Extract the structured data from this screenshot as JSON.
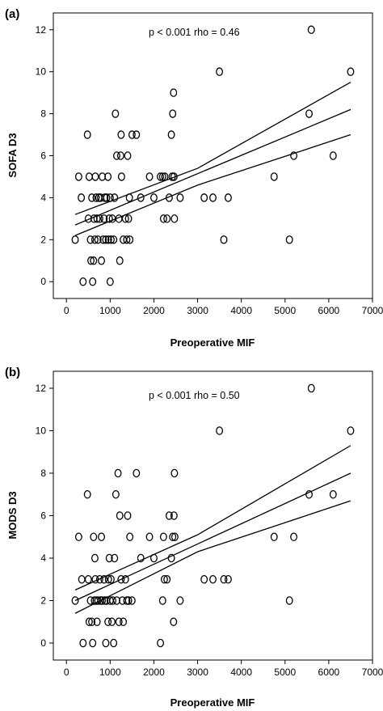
{
  "chart_data": [
    {
      "type": "scatter",
      "panel_label": "(a)",
      "annotation": "p < 0.001  rho = 0.46",
      "xlabel": "Preoperative MIF",
      "ylabel": "SOFA D3",
      "xlim": [
        -300,
        7000
      ],
      "ylim": [
        -0.8,
        12.8
      ],
      "xticks": [
        "0",
        "1000",
        "2000",
        "3000",
        "4000",
        "5000",
        "6000",
        "7000"
      ],
      "yticks": [
        "0",
        "2",
        "4",
        "6",
        "8",
        "10",
        "12"
      ],
      "grid": false,
      "points": [
        [
          200,
          2
        ],
        [
          280,
          5
        ],
        [
          340,
          4
        ],
        [
          380,
          0
        ],
        [
          480,
          7
        ],
        [
          500,
          3
        ],
        [
          520,
          5
        ],
        [
          550,
          2
        ],
        [
          560,
          1
        ],
        [
          580,
          4
        ],
        [
          600,
          0
        ],
        [
          620,
          1
        ],
        [
          630,
          3
        ],
        [
          650,
          2
        ],
        [
          660,
          5
        ],
        [
          680,
          4
        ],
        [
          700,
          3
        ],
        [
          720,
          2
        ],
        [
          740,
          4
        ],
        [
          760,
          3
        ],
        [
          780,
          4
        ],
        [
          800,
          1
        ],
        [
          820,
          5
        ],
        [
          840,
          2
        ],
        [
          860,
          3
        ],
        [
          880,
          4
        ],
        [
          900,
          2
        ],
        [
          920,
          4
        ],
        [
          950,
          5
        ],
        [
          960,
          2
        ],
        [
          980,
          3
        ],
        [
          1000,
          0
        ],
        [
          1000,
          4
        ],
        [
          1020,
          2
        ],
        [
          1050,
          3
        ],
        [
          1080,
          2
        ],
        [
          1100,
          4
        ],
        [
          1120,
          8
        ],
        [
          1150,
          6
        ],
        [
          1200,
          3
        ],
        [
          1220,
          1
        ],
        [
          1240,
          6
        ],
        [
          1250,
          7
        ],
        [
          1260,
          5
        ],
        [
          1300,
          2
        ],
        [
          1350,
          3
        ],
        [
          1380,
          2
        ],
        [
          1400,
          6
        ],
        [
          1420,
          3
        ],
        [
          1440,
          4
        ],
        [
          1450,
          2
        ],
        [
          1500,
          7
        ],
        [
          1600,
          7
        ],
        [
          1700,
          4
        ],
        [
          1900,
          5
        ],
        [
          2000,
          4
        ],
        [
          2150,
          5
        ],
        [
          2200,
          5
        ],
        [
          2220,
          3
        ],
        [
          2250,
          5
        ],
        [
          2300,
          3
        ],
        [
          2350,
          4
        ],
        [
          2400,
          7
        ],
        [
          2420,
          5
        ],
        [
          2430,
          8
        ],
        [
          2450,
          9
        ],
        [
          2460,
          5
        ],
        [
          2470,
          3
        ],
        [
          2600,
          4
        ],
        [
          3150,
          4
        ],
        [
          3350,
          4
        ],
        [
          3500,
          10
        ],
        [
          3600,
          2
        ],
        [
          3700,
          4
        ],
        [
          4750,
          5
        ],
        [
          5100,
          2
        ],
        [
          5200,
          6
        ],
        [
          5550,
          8
        ],
        [
          5600,
          12
        ],
        [
          6100,
          6
        ],
        [
          6500,
          10
        ]
      ],
      "fit_line": [
        [
          200,
          2.7
        ],
        [
          6500,
          8.2
        ]
      ],
      "ci_upper": [
        [
          200,
          3.2
        ],
        [
          3000,
          5.4
        ],
        [
          6500,
          9.5
        ]
      ],
      "ci_lower": [
        [
          200,
          2.2
        ],
        [
          3000,
          4.6
        ],
        [
          6500,
          7.0
        ]
      ]
    },
    {
      "type": "scatter",
      "panel_label": "(b)",
      "annotation": "p < 0.001  rho = 0.50",
      "xlabel": "Preoperative MIF",
      "ylabel": "MODS D3",
      "xlim": [
        -300,
        7000
      ],
      "ylim": [
        -0.8,
        12.8
      ],
      "xticks": [
        "0",
        "1000",
        "2000",
        "3000",
        "4000",
        "5000",
        "6000",
        "7000"
      ],
      "yticks": [
        "0",
        "2",
        "4",
        "6",
        "8",
        "10",
        "12"
      ],
      "grid": false,
      "points": [
        [
          200,
          2
        ],
        [
          280,
          5
        ],
        [
          350,
          3
        ],
        [
          380,
          0
        ],
        [
          480,
          7
        ],
        [
          500,
          3
        ],
        [
          520,
          1
        ],
        [
          550,
          2
        ],
        [
          580,
          1
        ],
        [
          600,
          0
        ],
        [
          620,
          5
        ],
        [
          640,
          2
        ],
        [
          650,
          4
        ],
        [
          660,
          3
        ],
        [
          680,
          2
        ],
        [
          700,
          1
        ],
        [
          720,
          2
        ],
        [
          760,
          3
        ],
        [
          780,
          2
        ],
        [
          800,
          5
        ],
        [
          820,
          2
        ],
        [
          860,
          3
        ],
        [
          880,
          2
        ],
        [
          900,
          0
        ],
        [
          920,
          2
        ],
        [
          950,
          1
        ],
        [
          960,
          3
        ],
        [
          980,
          4
        ],
        [
          1000,
          2
        ],
        [
          1020,
          3
        ],
        [
          1040,
          1
        ],
        [
          1060,
          2
        ],
        [
          1080,
          0
        ],
        [
          1100,
          4
        ],
        [
          1130,
          7
        ],
        [
          1150,
          2
        ],
        [
          1180,
          8
        ],
        [
          1200,
          1
        ],
        [
          1220,
          6
        ],
        [
          1250,
          3
        ],
        [
          1280,
          2
        ],
        [
          1300,
          1
        ],
        [
          1350,
          3
        ],
        [
          1380,
          2
        ],
        [
          1400,
          6
        ],
        [
          1420,
          2
        ],
        [
          1450,
          5
        ],
        [
          1500,
          2
        ],
        [
          1600,
          8
        ],
        [
          1700,
          4
        ],
        [
          1900,
          5
        ],
        [
          2000,
          4
        ],
        [
          2150,
          0
        ],
        [
          2200,
          2
        ],
        [
          2220,
          5
        ],
        [
          2240,
          3
        ],
        [
          2300,
          3
        ],
        [
          2350,
          6
        ],
        [
          2400,
          4
        ],
        [
          2430,
          5
        ],
        [
          2450,
          1
        ],
        [
          2460,
          6
        ],
        [
          2470,
          8
        ],
        [
          2480,
          5
        ],
        [
          2600,
          2
        ],
        [
          3150,
          3
        ],
        [
          3350,
          3
        ],
        [
          3500,
          10
        ],
        [
          3600,
          3
        ],
        [
          3700,
          3
        ],
        [
          4750,
          5
        ],
        [
          5100,
          2
        ],
        [
          5200,
          5
        ],
        [
          5550,
          7
        ],
        [
          5600,
          12
        ],
        [
          6100,
          7
        ],
        [
          6500,
          10
        ]
      ],
      "fit_line": [
        [
          200,
          2.0
        ],
        [
          6500,
          8.0
        ]
      ],
      "ci_upper": [
        [
          200,
          2.5
        ],
        [
          3000,
          5.1
        ],
        [
          6500,
          9.3
        ]
      ],
      "ci_lower": [
        [
          200,
          1.4
        ],
        [
          3000,
          4.3
        ],
        [
          6500,
          6.7
        ]
      ]
    }
  ]
}
